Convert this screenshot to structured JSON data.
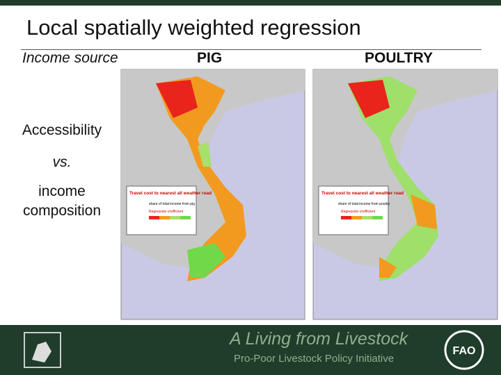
{
  "header": {
    "title": "Local spatially weighted regression"
  },
  "columns": {
    "row_header": "Income source",
    "maps": [
      {
        "heading": "PIG",
        "legend": {
          "title": "Travel cost to nearest all weather road",
          "subtitle": "share of total income from pig",
          "scale": "Regression coefficient"
        }
      },
      {
        "heading": "POULTRY",
        "legend": {
          "title": "Travel cost to nearest all weather road",
          "subtitle": "share of total income from poultry",
          "scale": "Regression coefficient"
        }
      }
    ]
  },
  "side": {
    "lines": [
      "Accessibility",
      "vs.",
      "income",
      "composition"
    ]
  },
  "footer": {
    "tagline": "A Living from Livestock",
    "initiative": "Pro-Poor Livestock Policy Initiative"
  }
}
